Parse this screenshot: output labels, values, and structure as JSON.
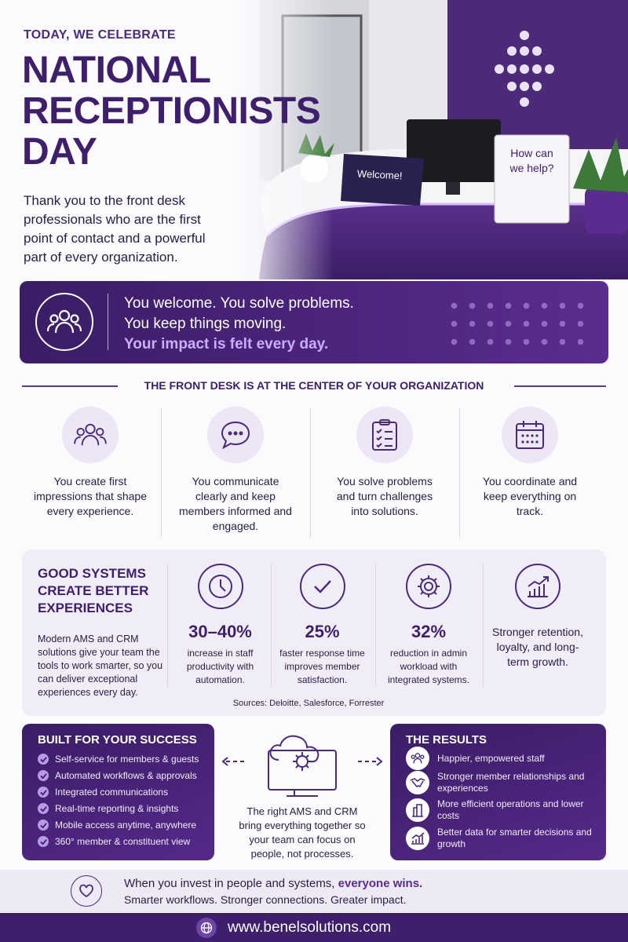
{
  "hero": {
    "kicker": "TODAY, WE CELEBRATE",
    "title": "NATIONAL RECEPTIONISTS DAY",
    "intro": "Thank you to the front desk professionals who are the first point of contact and a powerful part of every organization.",
    "sign_welcome": "Welcome!",
    "sign_help": "How can we help?"
  },
  "banner": {
    "lines": [
      "You welcome. You solve problems.",
      "You keep things moving."
    ],
    "highlight": "Your impact is felt every day."
  },
  "center": {
    "heading": "THE FRONT DESK IS AT THE CENTER OF YOUR ORGANIZATION",
    "items": [
      "You create first impressions that shape every experience.",
      "You communicate clearly and keep members informed and engaged.",
      "You solve problems and turn challenges into solutions.",
      "You coordinate and keep everything on track."
    ]
  },
  "systems": {
    "heading": "GOOD SYSTEMS CREATE BETTER EXPERIENCES",
    "text": "Modern AMS and CRM solutions give your team the tools to work smarter, so you can deliver exceptional experiences every day.",
    "stats": [
      {
        "value": "30–40%",
        "label": "increase in staff productivity with automation."
      },
      {
        "value": "25%",
        "label": "faster response time improves member satisfaction."
      },
      {
        "value": "32%",
        "label": "reduction in admin workload with integrated systems."
      }
    ],
    "closing": "Stronger retention, loyalty, and long-term growth.",
    "sources": "Sources: Deloitte, Salesforce, Forrester"
  },
  "success": {
    "heading": "BUILT FOR YOUR SUCCESS",
    "items": [
      "Self-service for members & guests",
      "Automated workflows & approvals",
      "Integrated communications",
      "Real-time reporting & insights",
      "Mobile access anytime, anywhere",
      "360° member & constituent view"
    ]
  },
  "middle": {
    "text": "The right AMS and CRM bring everything together so your team can focus on people, not processes."
  },
  "results": {
    "heading": "THE RESULTS",
    "items": [
      "Happier, empowered staff",
      "Stronger member relationships and experiences",
      "More efficient operations and lower costs",
      "Better data for smarter decisions and growth"
    ]
  },
  "footer": {
    "text": "When you invest in people and systems,",
    "highlight": "everyone wins.",
    "tagline": "Smarter workflows. Stronger connections. Greater impact.",
    "url": "www.benelsolutions.com"
  }
}
